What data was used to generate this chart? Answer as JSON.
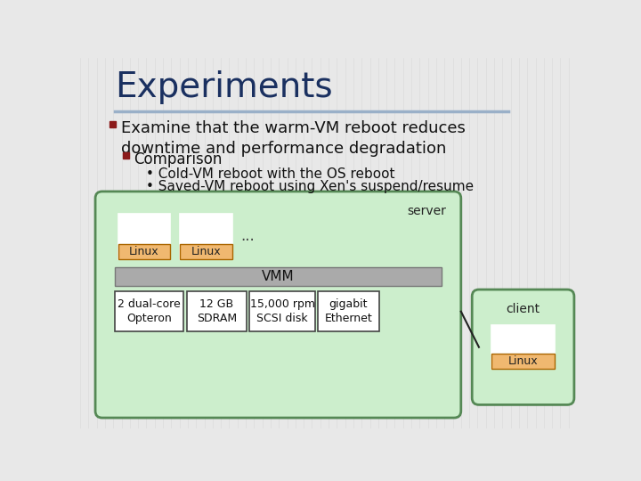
{
  "background_color": "#e8e8e8",
  "title": "Experiments",
  "title_color": "#1a3060",
  "title_fontsize": 28,
  "underline_color": "#9ab0c8",
  "bullet1_text": "Examine that the warm-VM reboot reduces\ndowntime and performance degradation",
  "bullet1_marker_color": "#8b1a1a",
  "bullet2_text": "Comparison",
  "bullet2_marker_color": "#8b1a1a",
  "sub_bullet1": "Cold-VM reboot with the OS reboot",
  "sub_bullet2": "Saved-VM reboot using Xen's suspend/resume",
  "text_color": "#111111",
  "server_box_color": "#cceecc",
  "server_box_edge": "#558855",
  "server_label": "server",
  "vmm_box_color": "#aaaaaa",
  "vmm_label": "VMM",
  "linux_box_color": "#f0b870",
  "linux_label": "Linux",
  "hw_labels": [
    "2 dual-core\nOpteron",
    "12 GB\nSDRAM",
    "15,000 rpm\nSCSI disk",
    "gigabit\nEthernet"
  ],
  "client_box_color": "#cceecc",
  "client_box_edge": "#558855",
  "client_label": "client",
  "dots": "..."
}
